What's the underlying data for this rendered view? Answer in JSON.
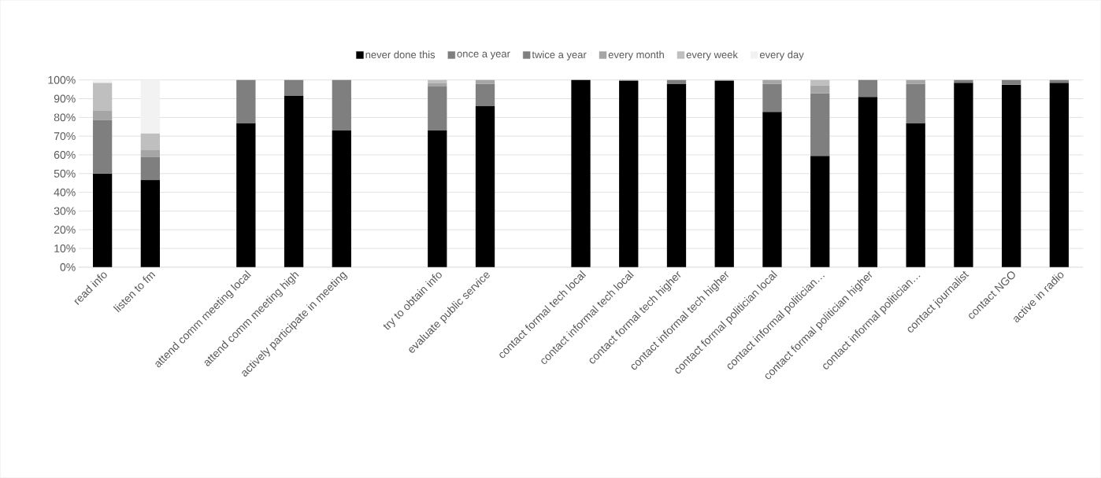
{
  "chart_data": {
    "type": "bar",
    "stacked": true,
    "categories": [
      "read info",
      "listen to fm",
      null,
      "attend comm meeting local",
      "attend comm meeting high",
      "actively participate in meeting",
      null,
      "try to obtain info",
      "evaluate public service",
      null,
      "contact formal tech local",
      "contact informal tech local",
      "contact formal tech higher",
      "contact informal tech higher",
      "contact formal politician local",
      "contact informal politician…",
      "contact formal politician higher",
      "contact informal politician…",
      "contact journalist",
      "contact NGO",
      "active in radio"
    ],
    "series": [
      {
        "name": "never done this",
        "color": "#000000",
        "values": [
          50,
          46.5,
          null,
          77,
          91.5,
          73,
          null,
          73,
          86,
          null,
          100,
          99.5,
          98,
          99.5,
          83,
          59.5,
          91,
          77,
          98.5,
          97.5,
          98.5
        ]
      },
      {
        "name": "once a year",
        "color": "#7f7f7f",
        "values": [
          28.5,
          12.5,
          null,
          23,
          8.5,
          27,
          null,
          23.5,
          12,
          null,
          0,
          0.5,
          2,
          0.5,
          15,
          33.5,
          9,
          21,
          1.5,
          2.5,
          1.5
        ]
      },
      {
        "name": "twice a year",
        "color": "#808080",
        "values": [
          0,
          0,
          null,
          0,
          0,
          0,
          null,
          0,
          0,
          null,
          0,
          0,
          0,
          0,
          0,
          0,
          0,
          0,
          0,
          0,
          0
        ]
      },
      {
        "name": "every month",
        "color": "#a5a5a5",
        "values": [
          5,
          3.5,
          null,
          0,
          0,
          0,
          null,
          2,
          2,
          null,
          0,
          0,
          0,
          0,
          2,
          4,
          0,
          2,
          0,
          0,
          0
        ]
      },
      {
        "name": "every week",
        "color": "#bfbfbf",
        "values": [
          15,
          9,
          null,
          0,
          0,
          0,
          null,
          1.5,
          0,
          null,
          0,
          0,
          0,
          0,
          0,
          3,
          0,
          0,
          0,
          0,
          0
        ]
      },
      {
        "name": "every day",
        "color": "#f2f2f2",
        "values": [
          1.5,
          28.5,
          null,
          0,
          0,
          0,
          null,
          0,
          0,
          null,
          0,
          0,
          0,
          0,
          0,
          0,
          0,
          0,
          0,
          0,
          0
        ]
      }
    ],
    "ylim": [
      0,
      100
    ],
    "yticks": [
      {
        "value": 0,
        "label": "0%"
      },
      {
        "value": 10,
        "label": "10%"
      },
      {
        "value": 20,
        "label": "20%"
      },
      {
        "value": 30,
        "label": "30%"
      },
      {
        "value": 40,
        "label": "40%"
      },
      {
        "value": 50,
        "label": "50%"
      },
      {
        "value": 60,
        "label": "60%"
      },
      {
        "value": 70,
        "label": "70%"
      },
      {
        "value": 80,
        "label": "80%"
      },
      {
        "value": 90,
        "label": "90%"
      },
      {
        "value": 100,
        "label": "100%"
      }
    ],
    "grid": "y",
    "legend": "top"
  }
}
